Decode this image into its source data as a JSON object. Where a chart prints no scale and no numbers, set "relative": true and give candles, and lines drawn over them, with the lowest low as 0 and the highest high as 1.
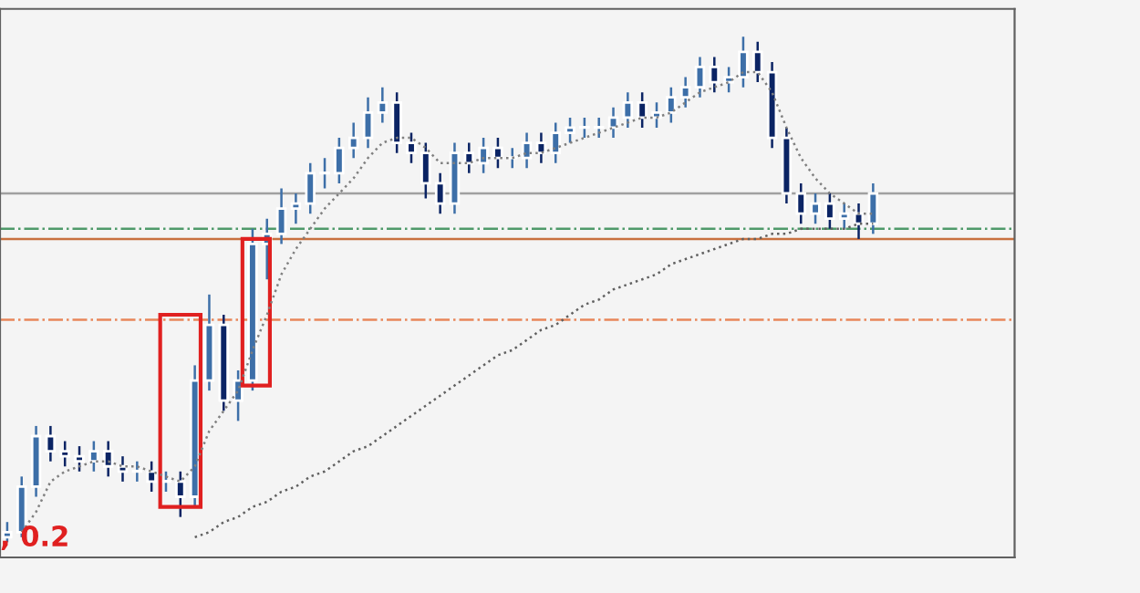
{
  "chart_data": {
    "type": "candlestick",
    "relative": true,
    "categories": [
      null,
      null,
      null,
      null,
      null,
      null,
      null,
      null,
      null,
      null,
      null,
      null,
      null,
      null,
      null,
      null,
      null,
      null,
      null,
      null,
      null,
      null,
      null,
      null,
      null,
      null,
      null,
      null,
      null,
      null,
      null,
      null,
      null,
      null,
      null,
      null,
      null,
      null,
      null,
      null,
      null,
      null,
      null,
      null,
      null,
      null,
      null,
      null,
      null,
      null,
      null,
      null,
      null,
      null,
      null,
      null,
      null,
      null,
      null,
      null,
      null
    ],
    "ohlc": [
      [
        0.01,
        0.04,
        0,
        0.02
      ],
      [
        0.02,
        0.13,
        0.01,
        0.11
      ],
      [
        0.11,
        0.23,
        0.09,
        0.21
      ],
      [
        0.21,
        0.23,
        0.16,
        0.18
      ],
      [
        0.18,
        0.2,
        0.15,
        0.17
      ],
      [
        0.17,
        0.19,
        0.14,
        0.16
      ],
      [
        0.16,
        0.2,
        0.14,
        0.18
      ],
      [
        0.18,
        0.2,
        0.13,
        0.15
      ],
      [
        0.15,
        0.17,
        0.12,
        0.14
      ],
      [
        0.14,
        0.16,
        0.12,
        0.14
      ],
      [
        0.14,
        0.16,
        0.1,
        0.12
      ],
      [
        0.12,
        0.14,
        0.1,
        0.12
      ],
      [
        0.12,
        0.14,
        0.05,
        0.09
      ],
      [
        0.09,
        0.35,
        0.07,
        0.32
      ],
      [
        0.32,
        0.49,
        0.3,
        0.43
      ],
      [
        0.43,
        0.45,
        0.26,
        0.28
      ],
      [
        0.28,
        0.34,
        0.24,
        0.32
      ],
      [
        0.32,
        0.62,
        0.3,
        0.59
      ],
      [
        0.59,
        0.64,
        0.52,
        0.61
      ],
      [
        0.61,
        0.7,
        0.59,
        0.66
      ],
      [
        0.66,
        0.69,
        0.63,
        0.67
      ],
      [
        0.67,
        0.75,
        0.65,
        0.73
      ],
      [
        0.73,
        0.76,
        0.7,
        0.73
      ],
      [
        0.73,
        0.8,
        0.71,
        0.78
      ],
      [
        0.78,
        0.83,
        0.76,
        0.8
      ],
      [
        0.8,
        0.88,
        0.78,
        0.85
      ],
      [
        0.85,
        0.9,
        0.83,
        0.87
      ],
      [
        0.87,
        0.89,
        0.77,
        0.79
      ],
      [
        0.79,
        0.81,
        0.75,
        0.77
      ],
      [
        0.77,
        0.79,
        0.68,
        0.71
      ],
      [
        0.71,
        0.73,
        0.65,
        0.67
      ],
      [
        0.67,
        0.79,
        0.65,
        0.77
      ],
      [
        0.77,
        0.79,
        0.73,
        0.75
      ],
      [
        0.75,
        0.8,
        0.73,
        0.78
      ],
      [
        0.78,
        0.8,
        0.74,
        0.76
      ],
      [
        0.76,
        0.78,
        0.74,
        0.76
      ],
      [
        0.76,
        0.81,
        0.74,
        0.79
      ],
      [
        0.79,
        0.81,
        0.75,
        0.77
      ],
      [
        0.77,
        0.83,
        0.75,
        0.81
      ],
      [
        0.81,
        0.84,
        0.79,
        0.82
      ],
      [
        0.82,
        0.84,
        0.8,
        0.82
      ],
      [
        0.82,
        0.84,
        0.8,
        0.82
      ],
      [
        0.82,
        0.86,
        0.8,
        0.84
      ],
      [
        0.84,
        0.89,
        0.82,
        0.87
      ],
      [
        0.87,
        0.89,
        0.82,
        0.84
      ],
      [
        0.84,
        0.87,
        0.82,
        0.85
      ],
      [
        0.85,
        0.9,
        0.83,
        0.88
      ],
      [
        0.88,
        0.92,
        0.86,
        0.9
      ],
      [
        0.9,
        0.96,
        0.88,
        0.94
      ],
      [
        0.94,
        0.96,
        0.89,
        0.91
      ],
      [
        0.91,
        0.94,
        0.89,
        0.92
      ],
      [
        0.92,
        1,
        0.9,
        0.97
      ],
      [
        0.97,
        0.99,
        0.91,
        0.93
      ],
      [
        0.93,
        0.95,
        0.78,
        0.8
      ],
      [
        0.8,
        0.82,
        0.67,
        0.69
      ],
      [
        0.69,
        0.71,
        0.63,
        0.65
      ],
      [
        0.65,
        0.69,
        0.63,
        0.67
      ],
      [
        0.67,
        0.69,
        0.62,
        0.64
      ],
      [
        0.64,
        0.67,
        0.62,
        0.65
      ],
      [
        0.65,
        0.67,
        0.6,
        0.63
      ],
      [
        0.63,
        0.71,
        0.61,
        0.69
      ]
    ],
    "series": [
      {
        "type": "line",
        "color": "#808080",
        "line_style": "dotted",
        "values": [
          null,
          0.02,
          0.06,
          0.12,
          0.14,
          0.15,
          0.16,
          0.16,
          0.15,
          0.15,
          0.14,
          0.13,
          0.12,
          0.15,
          0.22,
          0.26,
          0.3,
          0.38,
          0.45,
          0.53,
          0.58,
          0.62,
          0.66,
          0.69,
          0.72,
          0.76,
          0.79,
          0.8,
          0.8,
          0.78,
          0.75,
          0.75,
          0.75,
          0.76,
          0.76,
          0.76,
          0.77,
          0.77,
          0.78,
          0.79,
          0.8,
          0.81,
          0.82,
          0.83,
          0.84,
          0.84,
          0.85,
          0.87,
          0.89,
          0.9,
          0.91,
          0.93,
          0.93,
          0.89,
          0.82,
          0.76,
          0.72,
          0.69,
          0.67,
          0.65,
          0.65
        ]
      },
      {
        "type": "line",
        "color": "#606060",
        "line_style": "dotted",
        "values": [
          null,
          null,
          null,
          null,
          null,
          null,
          null,
          null,
          null,
          null,
          null,
          null,
          null,
          0.01,
          0.02,
          0.04,
          0.05,
          0.07,
          0.08,
          0.1,
          0.11,
          0.13,
          0.14,
          0.16,
          0.18,
          0.19,
          0.21,
          0.23,
          0.25,
          0.27,
          0.29,
          0.31,
          0.33,
          0.35,
          0.37,
          0.38,
          0.4,
          0.42,
          0.43,
          0.45,
          0.47,
          0.48,
          0.5,
          0.51,
          0.52,
          0.53,
          0.55,
          0.56,
          0.57,
          0.58,
          0.59,
          0.6,
          0.6,
          0.61,
          0.61,
          0.62,
          0.62,
          0.62,
          0.62,
          0.63,
          0.63
        ]
      }
    ],
    "ref_lines": [
      {
        "axis": "y",
        "value": 0.69,
        "color": "#a0a0a0",
        "line_style": "solid"
      },
      {
        "axis": "y",
        "value": 0.62,
        "color": "#4f9a6a",
        "line_style": "dashdot"
      },
      {
        "axis": "y",
        "value": 0.6,
        "color": "#c8703f",
        "line_style": "solid"
      },
      {
        "axis": "y",
        "value": 0.44,
        "color": "#e8865a",
        "line_style": "dashdot"
      }
    ],
    "annotations": [
      ", 0.2"
    ]
  }
}
